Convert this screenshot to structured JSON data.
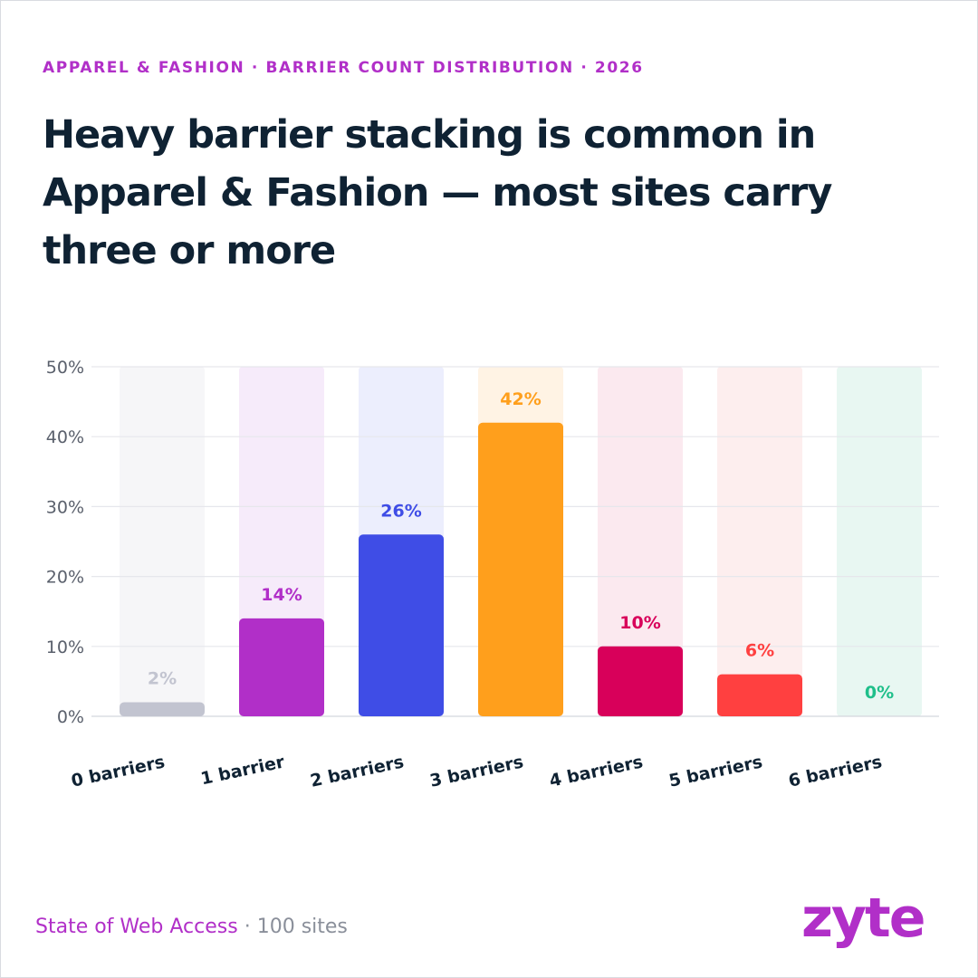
{
  "header": {
    "eyebrow": "APPAREL & FASHION · BARRIER COUNT DISTRIBUTION · 2026",
    "title": "Heavy barrier stacking is common in Apparel & Fashion — most sites carry three or more"
  },
  "footer": {
    "source": "State of Web Access",
    "separator": "·",
    "sample": "100 sites",
    "logo": "zyte"
  },
  "chart_data": {
    "type": "bar",
    "categories": [
      "0 barriers",
      "1 barrier",
      "2 barriers",
      "3 barriers",
      "4 barriers",
      "5 barriers",
      "6 barriers"
    ],
    "values": [
      2,
      14,
      26,
      42,
      10,
      6,
      0
    ],
    "value_labels": [
      "2%",
      "14%",
      "26%",
      "42%",
      "10%",
      "6%",
      "0%"
    ],
    "colors": [
      "#c2c4d0",
      "#b12fc8",
      "#3f4de6",
      "#ff9f1c",
      "#d8005a",
      "#ff4040",
      "#1fbf8a"
    ],
    "track_colors": [
      "#f6f6f8",
      "#f6ebfa",
      "#eceefd",
      "#fff3e4",
      "#fbe9ef",
      "#fdeeee",
      "#e8f7f2"
    ],
    "label_colors": [
      "#c2c4d0",
      "#b12fc8",
      "#3f4de6",
      "#ff9f1c",
      "#d8005a",
      "#ff4040",
      "#1fbf8a"
    ],
    "y_ticks": [
      "0%",
      "10%",
      "20%",
      "30%",
      "40%",
      "50%"
    ],
    "ylim": [
      0,
      50
    ],
    "grid": true
  }
}
